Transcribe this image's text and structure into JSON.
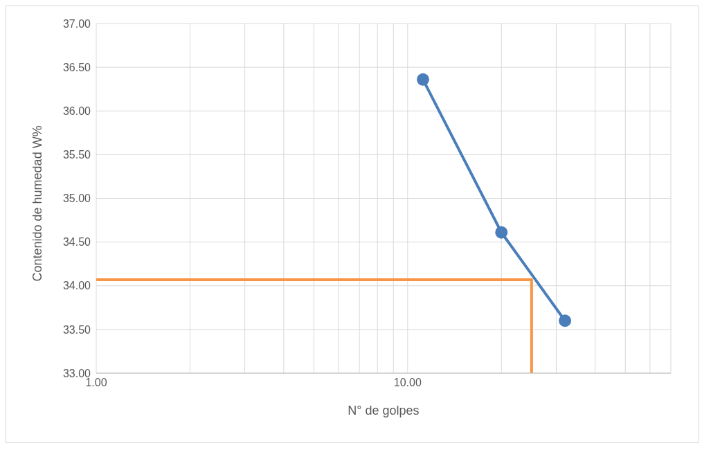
{
  "chart_data": {
    "type": "line",
    "xlabel": "N°  de golpes",
    "ylabel": "Contenido de humedad W%",
    "log": "x",
    "grid": true,
    "legend": false,
    "line_style": "solid",
    "xlim": [
      1,
      70
    ],
    "xticks": [
      {
        "value": 1,
        "label": "1.00"
      },
      {
        "value": 2,
        "label": null
      },
      {
        "value": 3,
        "label": null
      },
      {
        "value": 4,
        "label": null
      },
      {
        "value": 5,
        "label": null
      },
      {
        "value": 6,
        "label": null
      },
      {
        "value": 7,
        "label": null
      },
      {
        "value": 8,
        "label": null
      },
      {
        "value": 9,
        "label": null
      },
      {
        "value": 10,
        "label": "10.00"
      },
      {
        "value": 20,
        "label": null
      },
      {
        "value": 30,
        "label": null
      },
      {
        "value": 40,
        "label": null
      },
      {
        "value": 50,
        "label": null
      },
      {
        "value": 60,
        "label": null
      },
      {
        "value": 70,
        "label": null
      }
    ],
    "ylim": [
      33,
      37
    ],
    "yticks": [
      {
        "value": 33,
        "label": "33.00"
      },
      {
        "value": 33.5,
        "label": "33.50"
      },
      {
        "value": 34,
        "label": "34.00"
      },
      {
        "value": 34.5,
        "label": "34.50"
      },
      {
        "value": 35,
        "label": "35.00"
      },
      {
        "value": 35.5,
        "label": "35.50"
      },
      {
        "value": 36,
        "label": "36.00"
      },
      {
        "value": 36.5,
        "label": "36.50"
      },
      {
        "value": 37,
        "label": "37.00"
      }
    ],
    "series": [
      {
        "color": "#4a7ebb",
        "marker": "circle",
        "x": [
          11.2,
          20,
          32
        ],
        "values": [
          36.36,
          34.61,
          33.6
        ]
      },
      {
        "color": "#f79646",
        "marker": "none",
        "x": [
          1,
          25,
          25
        ],
        "values": [
          34.07,
          34.07,
          33
        ]
      }
    ]
  }
}
